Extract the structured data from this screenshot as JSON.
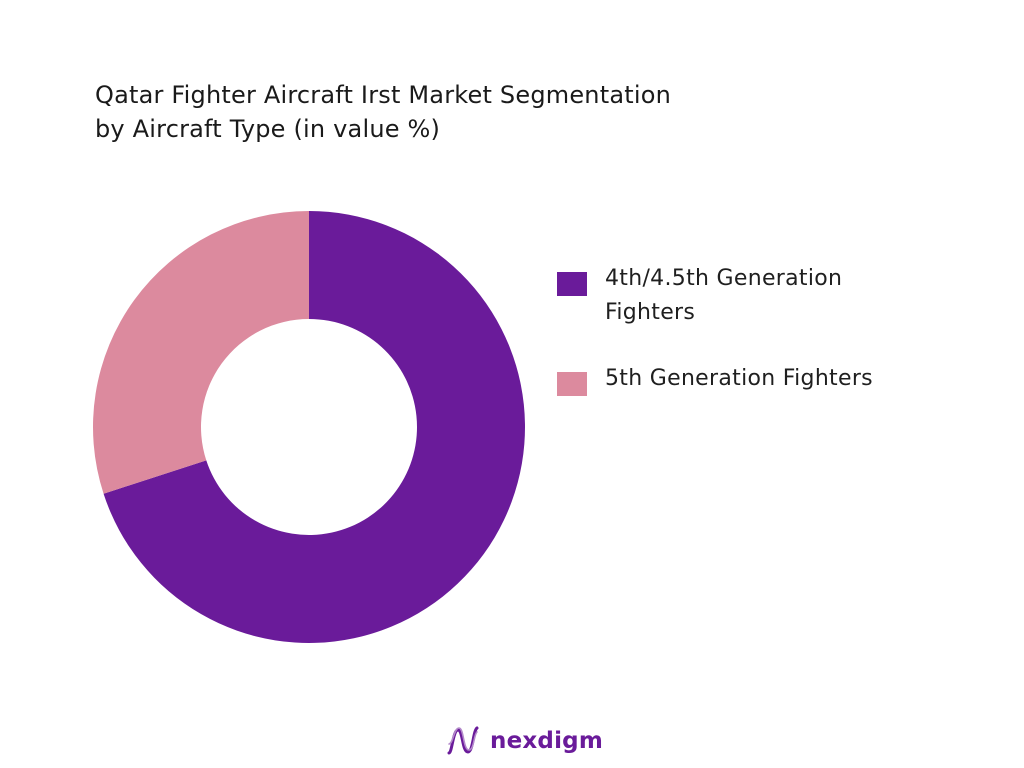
{
  "chart_data": {
    "type": "pie",
    "title_lines": [
      "Qatar Fighter Aircraft Irst Market Segmentation",
      "by Aircraft Type (in value %)"
    ],
    "categories": [
      "4th/4.5th Generation Fighters",
      "5th Generation Fighters"
    ],
    "values": [
      70,
      30
    ],
    "colors": [
      "#6a1b9a",
      "#dc8a9e"
    ],
    "donut": true,
    "legend_placement": "right"
  },
  "legend": [
    {
      "label": "4th/4.5th Generation Fighters",
      "color": "#6a1b9a"
    },
    {
      "label": "5th Generation Fighters",
      "color": "#dc8a9e"
    }
  ],
  "brand": {
    "name": "nexdigm",
    "color": "#6a1b9a",
    "icon": "nexdigm-logo-icon"
  }
}
